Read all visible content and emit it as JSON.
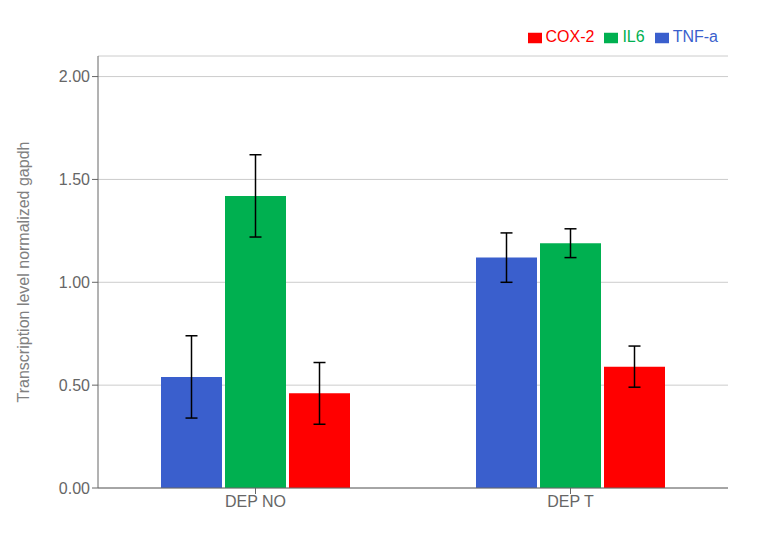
{
  "chart_data": {
    "type": "bar",
    "ylabel": "Transcription level normalized gapdh",
    "categories": [
      "DEP NO",
      "DEP T"
    ],
    "series": [
      {
        "name": "TNF-a",
        "color": "#3a5fcd",
        "values": [
          0.54,
          1.12
        ],
        "errors": [
          0.2,
          0.12
        ]
      },
      {
        "name": "IL6",
        "color": "#00b050",
        "values": [
          1.42,
          1.19
        ],
        "errors": [
          0.2,
          0.07
        ]
      },
      {
        "name": "COX-2",
        "color": "#ff0000",
        "values": [
          0.46,
          0.59
        ],
        "errors": [
          0.15,
          0.1
        ]
      }
    ],
    "ylim": [
      0,
      2.1
    ],
    "yticks": [
      {
        "value": 0.0,
        "label": "0.00"
      },
      {
        "value": 0.5,
        "label": "0.50"
      },
      {
        "value": 1.0,
        "label": "1.00"
      },
      {
        "value": 1.5,
        "label": "1.50"
      },
      {
        "value": 2.0,
        "label": "2.00"
      }
    ],
    "grid": true,
    "legend": "upper right"
  }
}
